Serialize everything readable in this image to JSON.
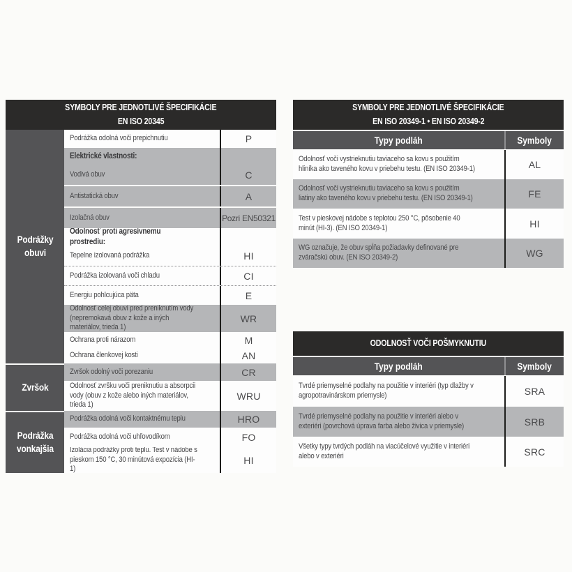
{
  "colors": {
    "title_bar_bg": "#2b2a29",
    "subheader_bg": "#545456",
    "sidebar_bg": "#545456",
    "row_gray": "#b5b6b8",
    "row_white": "#fdfdfd",
    "divider_line": "#1d1d1b",
    "text": "#48484a"
  },
  "left_table": {
    "title_line1": "SYMBOLY PRE JEDNOTLIVÉ ŠPECIFIKÁCIE",
    "title_line2": "EN ISO 20345",
    "sections": [
      {
        "name": "Podrážky obuvi",
        "rows": [
          {
            "label": "Podrážka odolná voči prepichnutiu",
            "symbol": "P",
            "shade": "white"
          },
          {
            "label": "Elektrické vlastnosti:",
            "symbol": "",
            "shade": "gray",
            "heading": true
          },
          {
            "label": "Vodivá obuv",
            "symbol": "C",
            "shade": "gray",
            "sep": "solid"
          },
          {
            "label": "Antistatická obuv",
            "symbol": "A",
            "shade": "gray",
            "sep": "solid"
          },
          {
            "label": "Izolačná obuv",
            "symbol": "Pozri EN50321",
            "shade": "gray"
          },
          {
            "label": "Odolnosť proti agresívnemu prostrediu:",
            "symbol": "",
            "shade": "white",
            "heading": true
          },
          {
            "label": "Tepelne izolovaná podrážka",
            "symbol": "HI",
            "shade": "white",
            "sep": "dotted"
          },
          {
            "label": "Podrážka izolovaná voči chladu",
            "symbol": "CI",
            "shade": "white",
            "sep": "dotted"
          },
          {
            "label": "Energiu pohlcujúca päta",
            "symbol": "E",
            "shade": "white"
          },
          {
            "label": "Odolnosť celej obuvi pred preniknutím vody (nepremokavá obuv z kože a iných materiálov, trieda 1)",
            "symbol": "WR",
            "shade": "gray"
          },
          {
            "label": "Ochrana proti nárazom",
            "symbol": "M",
            "shade": "white"
          },
          {
            "label": "Ochrana členkovej kosti",
            "symbol": "AN",
            "shade": "white"
          }
        ]
      },
      {
        "name": "Zvršok",
        "rows": [
          {
            "label": "Zvršok odolný voči porezaniu",
            "symbol": "CR",
            "shade": "gray"
          },
          {
            "label": "Odolnosť zvršku voči preniknutiu a absorpcii vody (obuv z kože alebo iných materiálov, trieda 1)",
            "symbol": "WRU",
            "shade": "white"
          }
        ]
      },
      {
        "name": "Podrážka vonkajšia",
        "rows": [
          {
            "label": "Podrážka odolná voči kontaktnému teplu",
            "symbol": "HRO",
            "shade": "gray"
          },
          {
            "label": "Podrážka odolná voči uhľovodíkom",
            "symbol": "FO",
            "shade": "white"
          },
          {
            "label": "Izolácia podrážky proti teplu. Test v nádobe s pieskom 150 °C, 30 minútová expozícia (HI-1)",
            "symbol": "HI",
            "shade": "white"
          }
        ]
      }
    ]
  },
  "right_table_1": {
    "title_line1": "SYMBOLY PRE JEDNOTLIVÉ ŠPECIFIKÁCIE",
    "title_line2": "EN ISO 20349-1 • EN ISO 20349-2",
    "col_types": "Typy podláh",
    "col_symbols": "Symboly",
    "rows": [
      {
        "label": "Odolnosť voči vystrieknutiu taviaceho sa kovu s použitím hliníka ako taveného kovu v priebehu testu. (EN ISO 20349-1)",
        "symbol": "AL",
        "shade": "white"
      },
      {
        "label": "Odolnosť voči vystrieknutiu taviaceho sa kovu s použitím liatiny ako taveného kovu v priebehu testu. (EN ISO 20349-1)",
        "symbol": "FE",
        "shade": "gray"
      },
      {
        "label": "Test v pieskovej nádobe s teplotou 250 °C, pôsobenie 40 minút (HI-3). (EN ISO 20349-1)",
        "symbol": "HI",
        "shade": "white"
      },
      {
        "label": "WG označuje, že obuv spĺňa požiadavky definované pre zváračskú obuv. (EN ISO 20349-2)",
        "symbol": "WG",
        "shade": "gray"
      }
    ]
  },
  "right_table_2": {
    "title_line1": "ODOLNOSŤ VOČI POŠMYKNUTIU",
    "col_types": "Typy podláh",
    "col_symbols": "Symboly",
    "rows": [
      {
        "label": "Tvrdé priemyselné podlahy na použitie v interiéri (typ dlažby v agropotravinárskom priemysle)",
        "symbol": "SRA",
        "shade": "white"
      },
      {
        "label": "Tvrdé priemyselné podlahy na použitie v interiéri alebo v exteriéri (povrchová úprava farba alebo živica v priemysle)",
        "symbol": "SRB",
        "shade": "gray"
      },
      {
        "label": "Všetky typy tvrdých podláh na viacúčelové využitie v interiéri alebo v exteriéri",
        "symbol": "SRC",
        "shade": "white"
      }
    ]
  }
}
